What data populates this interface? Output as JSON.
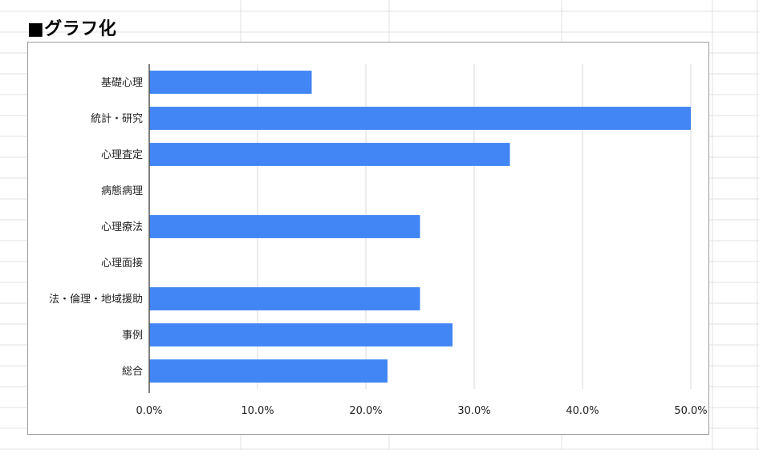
{
  "sheet": {
    "title": "■グラフ化"
  },
  "colors": {
    "bar": "#4285f4",
    "gridline": "#d9d9d9",
    "axis": "#555555",
    "sheet_grid": "#e0e0e0",
    "frame_border": "#9e9e9e"
  },
  "chart_data": {
    "type": "bar",
    "orientation": "horizontal",
    "title": "",
    "xlabel": "",
    "ylabel": "",
    "categories": [
      "基礎心理",
      "統計・研究",
      "心理査定",
      "病態病理",
      "心理療法",
      "心理面接",
      "法・倫理・地域援助",
      "事例",
      "総合"
    ],
    "values": [
      0.15,
      0.5,
      0.333,
      0,
      0.25,
      0,
      0.25,
      0.28,
      0.22
    ],
    "xlim": [
      0,
      0.5
    ],
    "ticks": [
      0,
      0.1,
      0.2,
      0.3,
      0.4,
      0.5
    ],
    "tick_labels": [
      "0.0%",
      "10.0%",
      "20.0%",
      "30.0%",
      "40.0%",
      "50.0%"
    ],
    "grid": true,
    "legend": "none"
  }
}
